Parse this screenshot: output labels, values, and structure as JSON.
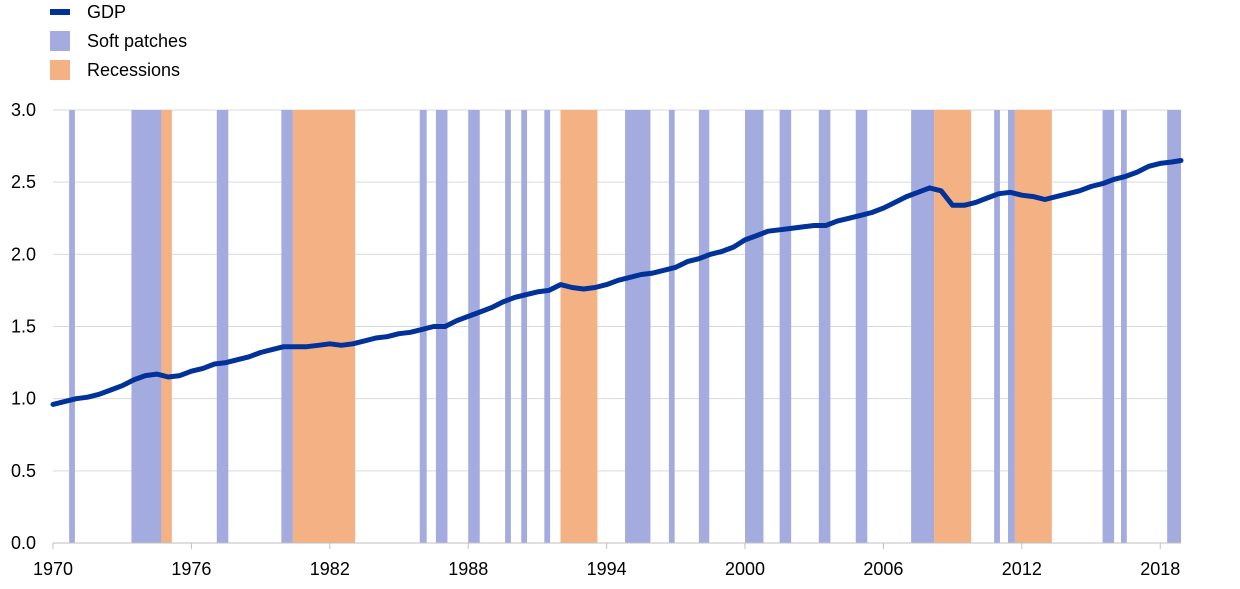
{
  "legend": {
    "items": [
      {
        "label": "GDP",
        "kind": "line",
        "color": "#003299"
      },
      {
        "label": "Soft patches",
        "kind": "box",
        "color": "#a4acdf"
      },
      {
        "label": "Recessions",
        "kind": "box",
        "color": "#f4b183"
      }
    ]
  },
  "chart_data": {
    "type": "line",
    "title": "",
    "xlabel": "",
    "ylabel": "",
    "xlim": [
      1970,
      2018.9
    ],
    "ylim": [
      0,
      3.0
    ],
    "y_ticks": [
      "0.0",
      "0.5",
      "1.0",
      "1.5",
      "2.0",
      "2.5",
      "3.0"
    ],
    "x_ticks": [
      "1970",
      "1976",
      "1982",
      "1988",
      "1994",
      "2000",
      "2006",
      "2012",
      "2018"
    ],
    "grid": true,
    "legend_position": "top-left",
    "series": [
      {
        "name": "GDP",
        "color": "#003299",
        "points": [
          [
            1970.0,
            0.96
          ],
          [
            1970.5,
            0.98
          ],
          [
            1971.0,
            1.0
          ],
          [
            1971.5,
            1.01
          ],
          [
            1972.0,
            1.03
          ],
          [
            1972.5,
            1.06
          ],
          [
            1973.0,
            1.09
          ],
          [
            1973.5,
            1.13
          ],
          [
            1974.0,
            1.16
          ],
          [
            1974.5,
            1.17
          ],
          [
            1975.0,
            1.15
          ],
          [
            1975.5,
            1.16
          ],
          [
            1976.0,
            1.19
          ],
          [
            1976.5,
            1.21
          ],
          [
            1977.0,
            1.24
          ],
          [
            1977.5,
            1.25
          ],
          [
            1978.0,
            1.27
          ],
          [
            1978.5,
            1.29
          ],
          [
            1979.0,
            1.32
          ],
          [
            1979.5,
            1.34
          ],
          [
            1980.0,
            1.36
          ],
          [
            1980.5,
            1.36
          ],
          [
            1981.0,
            1.36
          ],
          [
            1981.5,
            1.37
          ],
          [
            1982.0,
            1.38
          ],
          [
            1982.5,
            1.37
          ],
          [
            1983.0,
            1.38
          ],
          [
            1983.5,
            1.4
          ],
          [
            1984.0,
            1.42
          ],
          [
            1984.5,
            1.43
          ],
          [
            1985.0,
            1.45
          ],
          [
            1985.5,
            1.46
          ],
          [
            1986.0,
            1.48
          ],
          [
            1986.5,
            1.5
          ],
          [
            1987.0,
            1.5
          ],
          [
            1987.5,
            1.54
          ],
          [
            1988.0,
            1.57
          ],
          [
            1988.5,
            1.6
          ],
          [
            1989.0,
            1.63
          ],
          [
            1989.5,
            1.67
          ],
          [
            1990.0,
            1.7
          ],
          [
            1990.5,
            1.72
          ],
          [
            1991.0,
            1.74
          ],
          [
            1991.5,
            1.75
          ],
          [
            1992.0,
            1.79
          ],
          [
            1992.5,
            1.77
          ],
          [
            1993.0,
            1.76
          ],
          [
            1993.5,
            1.77
          ],
          [
            1994.0,
            1.79
          ],
          [
            1994.5,
            1.82
          ],
          [
            1995.0,
            1.84
          ],
          [
            1995.5,
            1.86
          ],
          [
            1996.0,
            1.87
          ],
          [
            1996.5,
            1.89
          ],
          [
            1997.0,
            1.91
          ],
          [
            1997.5,
            1.95
          ],
          [
            1998.0,
            1.97
          ],
          [
            1998.5,
            2.0
          ],
          [
            1999.0,
            2.02
          ],
          [
            1999.5,
            2.05
          ],
          [
            2000.0,
            2.1
          ],
          [
            2000.5,
            2.13
          ],
          [
            2001.0,
            2.16
          ],
          [
            2001.5,
            2.17
          ],
          [
            2002.0,
            2.18
          ],
          [
            2002.5,
            2.19
          ],
          [
            2003.0,
            2.2
          ],
          [
            2003.5,
            2.2
          ],
          [
            2004.0,
            2.23
          ],
          [
            2004.5,
            2.25
          ],
          [
            2005.0,
            2.27
          ],
          [
            2005.5,
            2.29
          ],
          [
            2006.0,
            2.32
          ],
          [
            2006.5,
            2.36
          ],
          [
            2007.0,
            2.4
          ],
          [
            2007.5,
            2.43
          ],
          [
            2008.0,
            2.46
          ],
          [
            2008.5,
            2.44
          ],
          [
            2009.0,
            2.34
          ],
          [
            2009.5,
            2.34
          ],
          [
            2010.0,
            2.36
          ],
          [
            2010.5,
            2.39
          ],
          [
            2011.0,
            2.42
          ],
          [
            2011.5,
            2.43
          ],
          [
            2012.0,
            2.41
          ],
          [
            2012.5,
            2.4
          ],
          [
            2013.0,
            2.38
          ],
          [
            2013.5,
            2.4
          ],
          [
            2014.0,
            2.42
          ],
          [
            2014.5,
            2.44
          ],
          [
            2015.0,
            2.47
          ],
          [
            2015.5,
            2.49
          ],
          [
            2016.0,
            2.52
          ],
          [
            2016.5,
            2.54
          ],
          [
            2017.0,
            2.57
          ],
          [
            2017.5,
            2.61
          ],
          [
            2018.0,
            2.63
          ],
          [
            2018.5,
            2.64
          ],
          [
            2018.9,
            2.65
          ]
        ]
      }
    ],
    "shaded_regions": {
      "soft_patches": {
        "color": "#a4acdf",
        "periods": [
          [
            1970.7,
            1970.95
          ],
          [
            1973.4,
            1974.7
          ],
          [
            1977.1,
            1977.6
          ],
          [
            1979.9,
            1980.4
          ],
          [
            1985.9,
            1986.2
          ],
          [
            1986.6,
            1987.1
          ],
          [
            1988.0,
            1988.5
          ],
          [
            1989.6,
            1989.85
          ],
          [
            1990.3,
            1990.55
          ],
          [
            1991.3,
            1991.55
          ],
          [
            1994.8,
            1995.9
          ],
          [
            1996.7,
            1996.95
          ],
          [
            1998.0,
            1998.45
          ],
          [
            2000.0,
            2000.8
          ],
          [
            2001.5,
            2002.0
          ],
          [
            2003.2,
            2003.7
          ],
          [
            2004.8,
            2005.3
          ],
          [
            2007.2,
            2008.2
          ],
          [
            2010.8,
            2011.05
          ],
          [
            2011.4,
            2011.7
          ],
          [
            2015.5,
            2016.0
          ],
          [
            2016.3,
            2016.55
          ],
          [
            2018.3,
            2018.9
          ]
        ]
      },
      "recessions": {
        "color": "#f4b183",
        "periods": [
          [
            1974.7,
            1975.15
          ],
          [
            1980.4,
            1983.1
          ],
          [
            1992.0,
            1993.6
          ],
          [
            2008.2,
            2009.8
          ],
          [
            2011.7,
            2013.3
          ]
        ]
      }
    }
  }
}
